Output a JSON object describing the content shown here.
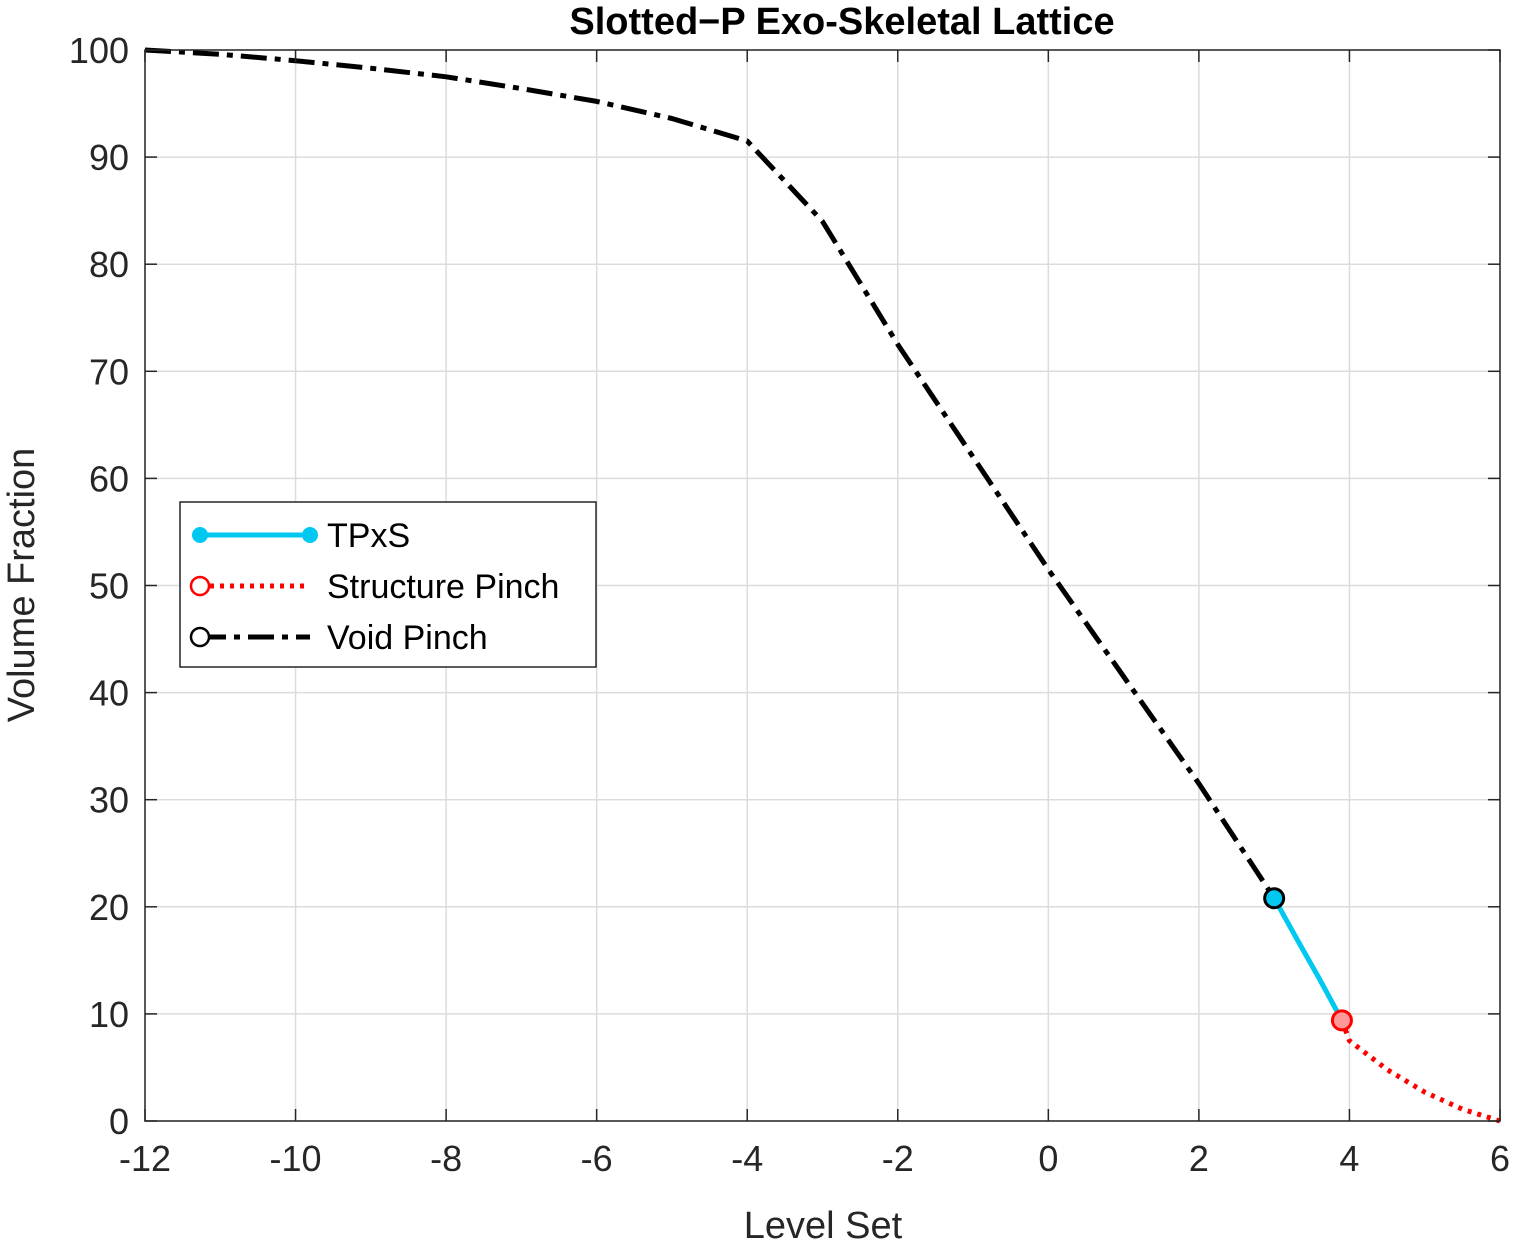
{
  "chart_data": {
    "type": "line",
    "title": "Slotted−P Exo-Skeletal Lattice",
    "xlabel": "Level Set",
    "ylabel": "Volume Fraction",
    "xlim": [
      -12,
      6
    ],
    "ylim": [
      0,
      100
    ],
    "xticks": [
      -12,
      -10,
      -8,
      -6,
      -4,
      -2,
      0,
      2,
      4,
      6
    ],
    "yticks": [
      0,
      10,
      20,
      30,
      40,
      50,
      60,
      70,
      80,
      90,
      100
    ],
    "grid": true,
    "legend_position": "middle-left",
    "series": [
      {
        "name": "TPxS",
        "color": "#00C8F0",
        "line": "solid",
        "marker": "filled-circle",
        "x": [
          3.0,
          3.3,
          3.6,
          3.9
        ],
        "y": [
          20.8,
          17.0,
          13.3,
          9.4
        ],
        "marker_points": [
          [
            3.0,
            20.8
          ]
        ]
      },
      {
        "name": "Structure Pinch",
        "color": "#FF0000",
        "line": "dotted",
        "marker": "open-circle",
        "x": [
          3.9,
          4.0,
          4.5,
          5.0,
          5.5,
          6.0
        ],
        "y": [
          9.4,
          7.5,
          4.8,
          2.7,
          1.1,
          0.0
        ],
        "marker_points": [
          [
            3.9,
            9.4
          ]
        ]
      },
      {
        "name": "Void Pinch",
        "color": "#000000",
        "line": "dash-dot",
        "marker": "open-circle",
        "x": [
          -12,
          -11,
          -10,
          -9,
          -8,
          -7,
          -6,
          -5,
          -4,
          -3,
          -2,
          -1,
          0,
          1,
          2,
          3
        ],
        "y": [
          100,
          99.6,
          99.0,
          98.3,
          97.5,
          96.4,
          95.2,
          93.6,
          91.5,
          84.0,
          72.5,
          62.0,
          51.5,
          41.5,
          31.5,
          20.8
        ],
        "marker_points": []
      }
    ]
  }
}
